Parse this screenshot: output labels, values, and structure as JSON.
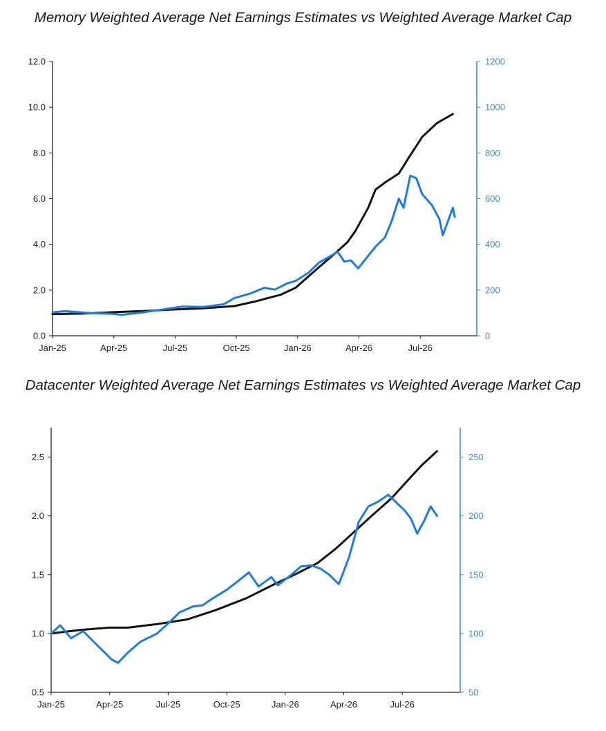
{
  "colors": {
    "earnings_line": "#111111",
    "market_cap_line": "#1e7be0",
    "right_axis": "#3b8fc4",
    "left_axis": "#222222"
  },
  "chart_data": [
    {
      "type": "line",
      "title": "Memory Weighted Average Net Earnings Estimates vs Weighted Average Market Cap",
      "x_ticks": [
        "Jan-25",
        "Apr-25",
        "Jul-25",
        "Oct-25",
        "Jan-26",
        "Apr-26",
        "Jul-26"
      ],
      "x_range": [
        "2025-01-01",
        "2026-09-30"
      ],
      "y_left_ticks": [
        "0.0",
        "2.0",
        "4.0",
        "6.0",
        "8.0",
        "10.0",
        "12.0"
      ],
      "y_left_range": [
        0,
        12
      ],
      "y_right_ticks": [
        "0",
        "200",
        "400",
        "600",
        "800",
        "1000",
        "1200"
      ],
      "y_right_range": [
        0,
        1200
      ],
      "grid": false,
      "series": [
        {
          "axis": "left",
          "color": "#111111",
          "points": [
            [
              "2025-01-01",
              0.95
            ],
            [
              "2025-02-15",
              0.97
            ],
            [
              "2025-04-01",
              1.03
            ],
            [
              "2025-05-15",
              1.08
            ],
            [
              "2025-07-01",
              1.15
            ],
            [
              "2025-08-15",
              1.2
            ],
            [
              "2025-10-01",
              1.3
            ],
            [
              "2025-11-01",
              1.5
            ],
            [
              "2025-12-10",
              1.8
            ],
            [
              "2026-01-01",
              2.1
            ],
            [
              "2026-02-01",
              2.9
            ],
            [
              "2026-03-01",
              3.6
            ],
            [
              "2026-03-20",
              4.1
            ],
            [
              "2026-04-01",
              4.6
            ],
            [
              "2026-04-20",
              5.6
            ],
            [
              "2026-05-01",
              6.4
            ],
            [
              "2026-05-15",
              6.7
            ],
            [
              "2026-06-05",
              7.1
            ],
            [
              "2026-06-20",
              7.8
            ],
            [
              "2026-07-10",
              8.7
            ],
            [
              "2026-08-01",
              9.3
            ],
            [
              "2026-08-25",
              9.7
            ]
          ]
        },
        {
          "axis": "right",
          "color": "#1e7be0",
          "points": [
            [
              "2025-01-01",
              102
            ],
            [
              "2025-01-20",
              108
            ],
            [
              "2025-02-10",
              103
            ],
            [
              "2025-03-01",
              99
            ],
            [
              "2025-04-01",
              96
            ],
            [
              "2025-04-15",
              92
            ],
            [
              "2025-05-15",
              102
            ],
            [
              "2025-06-15",
              115
            ],
            [
              "2025-07-15",
              128
            ],
            [
              "2025-08-15",
              126
            ],
            [
              "2025-09-15",
              138
            ],
            [
              "2025-10-01",
              165
            ],
            [
              "2025-10-25",
              185
            ],
            [
              "2025-11-15",
              210
            ],
            [
              "2025-12-01",
              202
            ],
            [
              "2025-12-20",
              230
            ],
            [
              "2026-01-01",
              240
            ],
            [
              "2026-01-20",
              275
            ],
            [
              "2026-02-05",
              320
            ],
            [
              "2026-02-20",
              345
            ],
            [
              "2026-03-05",
              368
            ],
            [
              "2026-03-15",
              325
            ],
            [
              "2026-03-25",
              330
            ],
            [
              "2026-04-05",
              295
            ],
            [
              "2026-04-20",
              350
            ],
            [
              "2026-05-01",
              390
            ],
            [
              "2026-05-15",
              430
            ],
            [
              "2026-05-25",
              500
            ],
            [
              "2026-06-05",
              600
            ],
            [
              "2026-06-12",
              560
            ],
            [
              "2026-06-22",
              700
            ],
            [
              "2026-07-01",
              690
            ],
            [
              "2026-07-10",
              620
            ],
            [
              "2026-07-25",
              570
            ],
            [
              "2026-08-05",
              510
            ],
            [
              "2026-08-10",
              440
            ],
            [
              "2026-08-20",
              520
            ],
            [
              "2026-08-25",
              560
            ],
            [
              "2026-08-28",
              520
            ]
          ]
        }
      ]
    },
    {
      "type": "line",
      "title": "Datacenter Weighted Average Net Earnings Estimates vs Weighted Average Market Cap",
      "x_ticks": [
        "Jan-25",
        "Apr-25",
        "Jul-25",
        "Oct-25",
        "Jan-26",
        "Apr-26",
        "Jul-26"
      ],
      "x_range": [
        "2025-01-01",
        "2026-09-30"
      ],
      "y_left_ticks": [
        "0.5",
        "1.0",
        "1.5",
        "2.0",
        "2.5"
      ],
      "y_left_range": [
        0.5,
        2.75
      ],
      "y_right_ticks": [
        "50",
        "100",
        "150",
        "200",
        "250"
      ],
      "y_right_range": [
        50,
        275
      ],
      "grid": false,
      "series": [
        {
          "axis": "left",
          "color": "#111111",
          "points": [
            [
              "2025-01-01",
              1.0
            ],
            [
              "2025-02-15",
              1.03
            ],
            [
              "2025-04-01",
              1.05
            ],
            [
              "2025-05-01",
              1.05
            ],
            [
              "2025-06-15",
              1.08
            ],
            [
              "2025-08-01",
              1.12
            ],
            [
              "2025-09-15",
              1.2
            ],
            [
              "2025-11-01",
              1.3
            ],
            [
              "2025-12-15",
              1.42
            ],
            [
              "2026-01-15",
              1.5
            ],
            [
              "2026-02-20",
              1.6
            ],
            [
              "2026-03-20",
              1.72
            ],
            [
              "2026-04-15",
              1.85
            ],
            [
              "2026-05-15",
              2.0
            ],
            [
              "2026-06-15",
              2.15
            ],
            [
              "2026-07-10",
              2.3
            ],
            [
              "2026-08-01",
              2.43
            ],
            [
              "2026-08-25",
              2.55
            ]
          ]
        },
        {
          "axis": "right",
          "color": "#1e7be0",
          "points": [
            [
              "2025-01-01",
              100
            ],
            [
              "2025-01-15",
              107
            ],
            [
              "2025-02-01",
              96
            ],
            [
              "2025-02-20",
              102
            ],
            [
              "2025-03-10",
              92
            ],
            [
              "2025-03-25",
              84
            ],
            [
              "2025-04-05",
              78
            ],
            [
              "2025-04-15",
              75
            ],
            [
              "2025-05-01",
              84
            ],
            [
              "2025-05-20",
              93
            ],
            [
              "2025-06-15",
              100
            ],
            [
              "2025-07-05",
              110
            ],
            [
              "2025-07-20",
              118
            ],
            [
              "2025-08-10",
              123
            ],
            [
              "2025-08-25",
              124
            ],
            [
              "2025-09-10",
              130
            ],
            [
              "2025-10-01",
              137
            ],
            [
              "2025-10-20",
              145
            ],
            [
              "2025-11-05",
              152
            ],
            [
              "2025-11-20",
              140
            ],
            [
              "2025-12-10",
              148
            ],
            [
              "2025-12-20",
              141
            ],
            [
              "2026-01-10",
              150
            ],
            [
              "2026-01-25",
              157
            ],
            [
              "2026-02-10",
              158
            ],
            [
              "2026-02-25",
              155
            ],
            [
              "2026-03-10",
              150
            ],
            [
              "2026-03-25",
              142
            ],
            [
              "2026-04-10",
              165
            ],
            [
              "2026-04-25",
              195
            ],
            [
              "2026-05-10",
              208
            ],
            [
              "2026-05-25",
              212
            ],
            [
              "2026-06-10",
              218
            ],
            [
              "2026-06-25",
              210
            ],
            [
              "2026-07-05",
              205
            ],
            [
              "2026-07-15",
              198
            ],
            [
              "2026-07-25",
              185
            ],
            [
              "2026-08-05",
              196
            ],
            [
              "2026-08-15",
              208
            ],
            [
              "2026-08-25",
              200
            ]
          ]
        }
      ]
    }
  ]
}
